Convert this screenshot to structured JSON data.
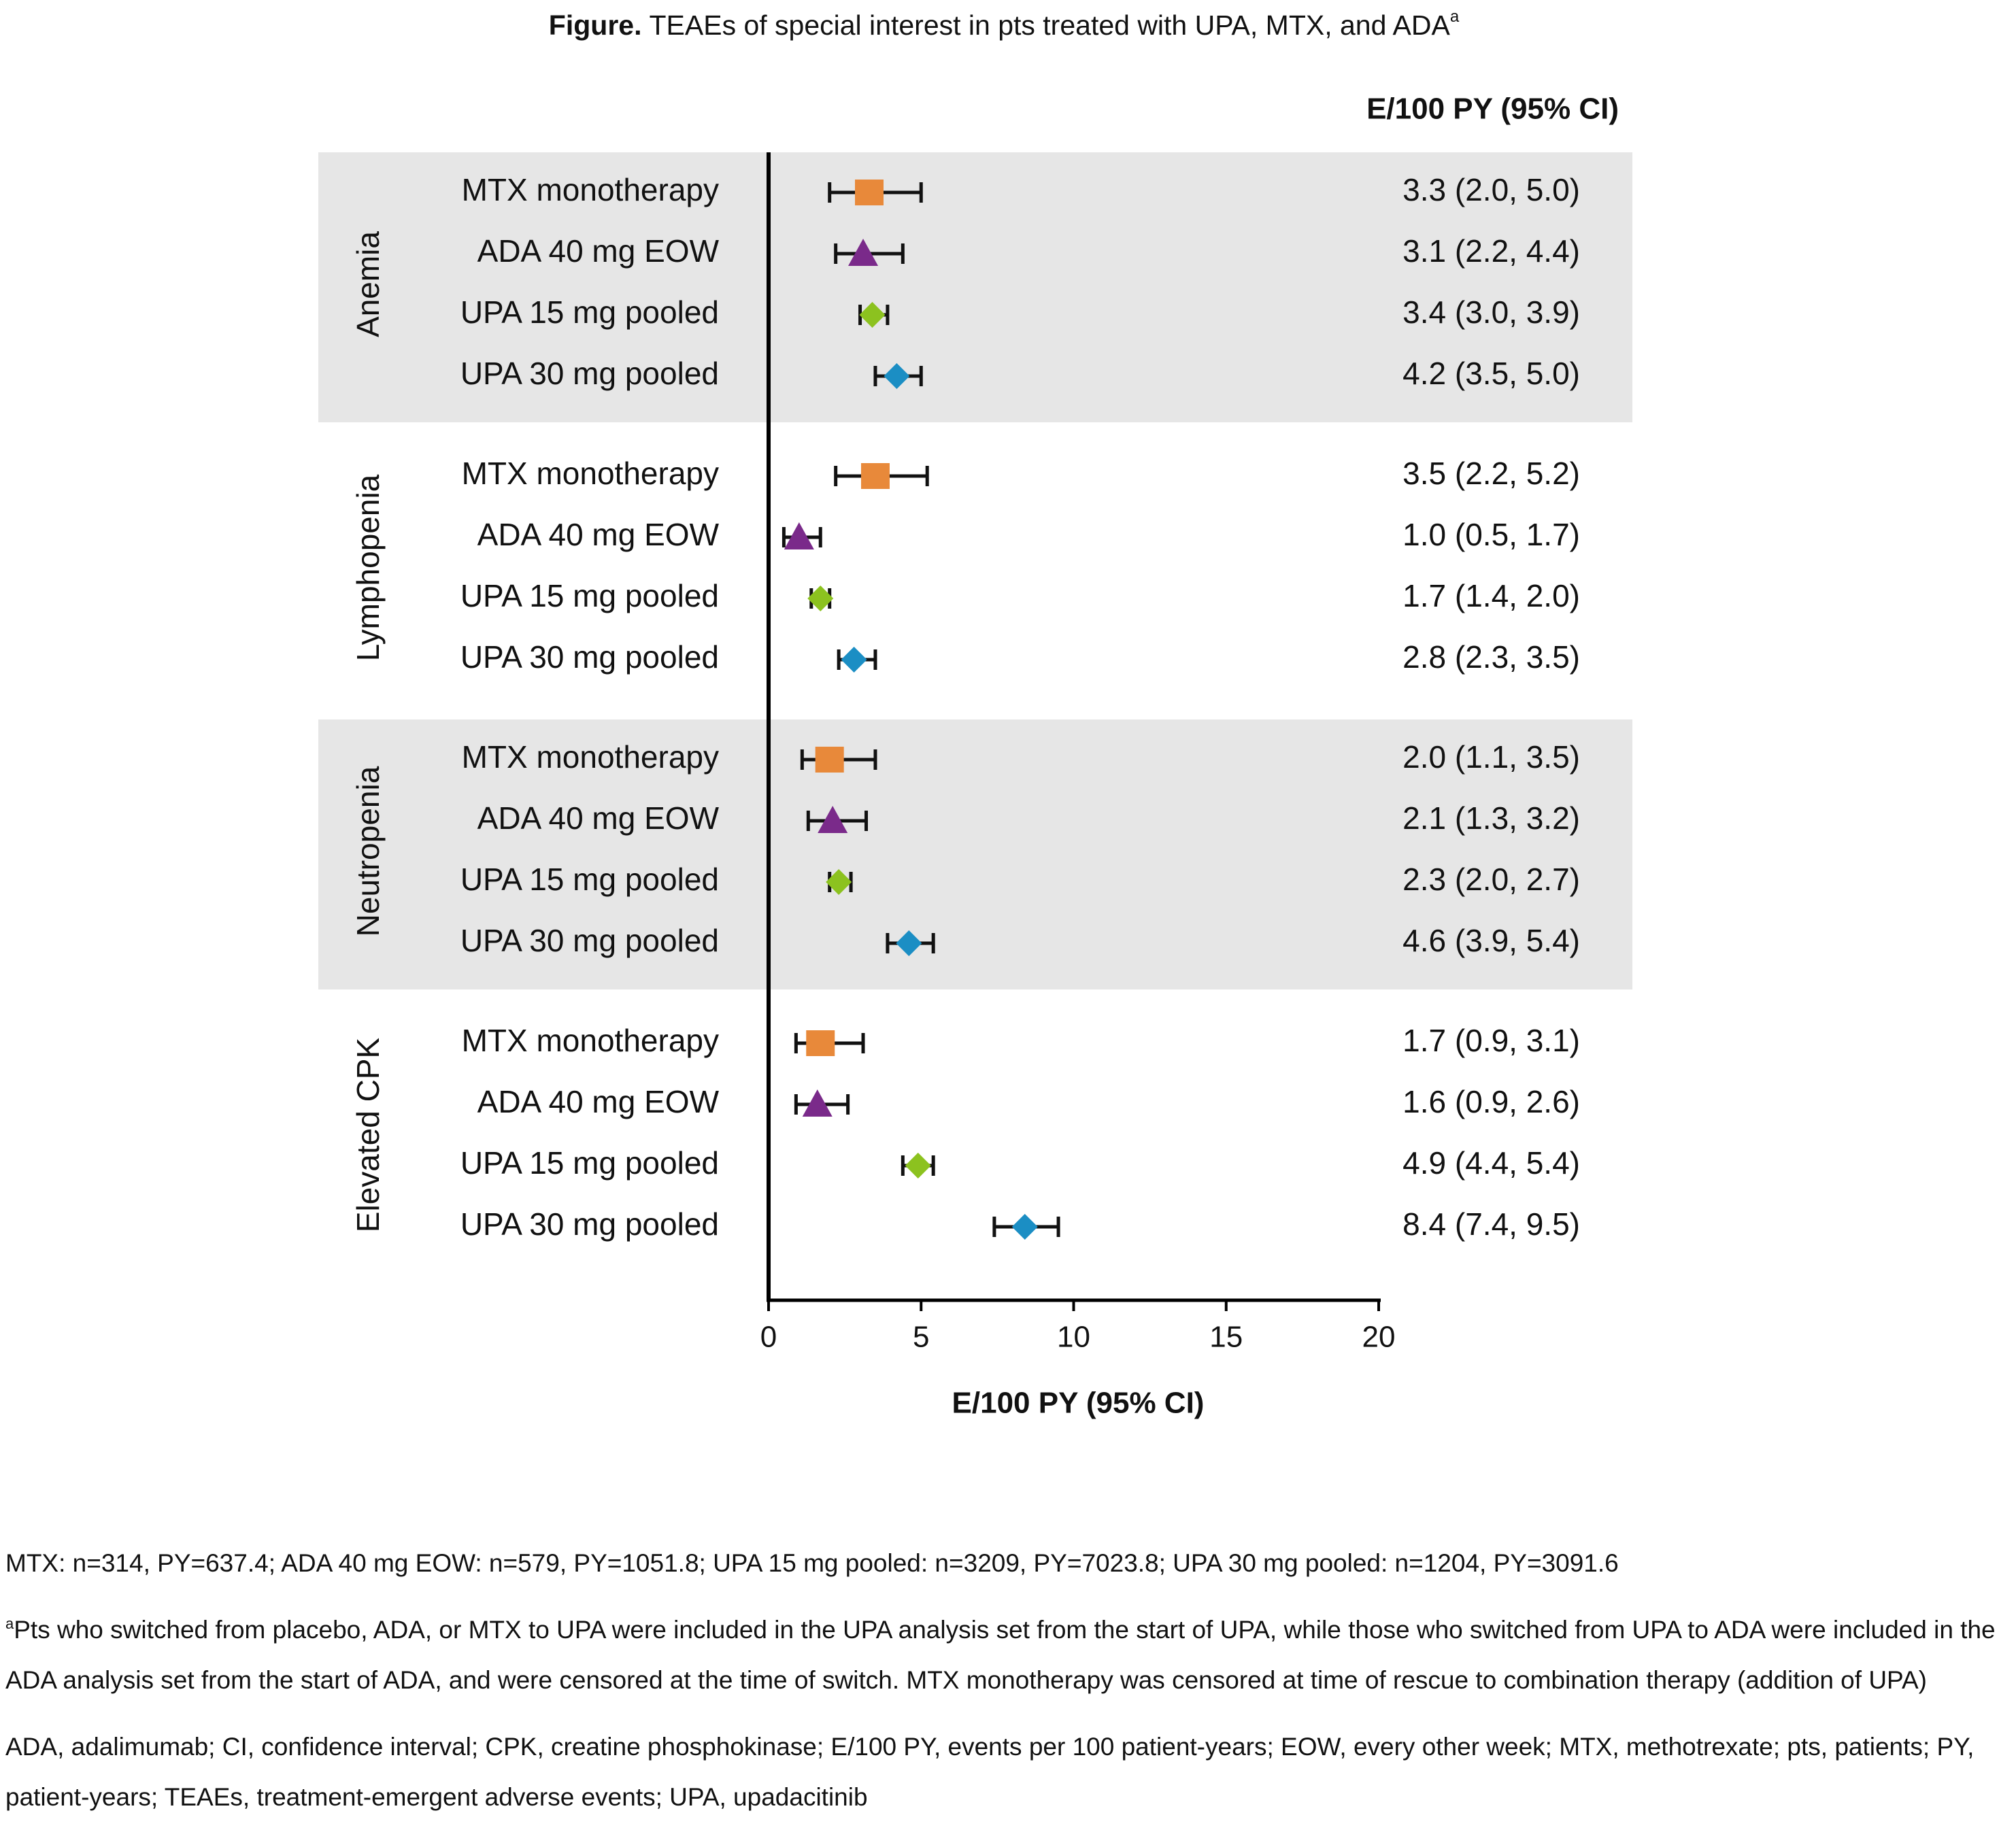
{
  "chart_data": {
    "type": "forest",
    "title_prefix": "Figure.",
    "title": "TEAEs of special interest in pts treated with UPA, MTX, and ADA",
    "title_sup": "a",
    "column_header": "E/100 PY (95% CI)",
    "xlabel": "E/100 PY (95% CI)",
    "xlim": [
      0,
      20
    ],
    "xticks": [
      0,
      5,
      10,
      15,
      20
    ],
    "categories": [
      "Anemia",
      "Lymphopenia",
      "Neutropenia",
      "Elevated CPK"
    ],
    "shaded": [
      true,
      false,
      true,
      false
    ],
    "shade_color": "#e6e6e6",
    "series": [
      {
        "name": "MTX monotherapy",
        "marker": "square",
        "color": "#e8893a",
        "values": [
          3.3,
          3.5,
          2.0,
          1.7
        ],
        "lower": [
          2.0,
          2.2,
          1.1,
          0.9
        ],
        "upper": [
          5.0,
          5.2,
          3.5,
          3.1
        ],
        "value_labels": [
          "3.3 (2.0, 5.0)",
          "3.5 (2.2, 5.2)",
          "2.0 (1.1, 3.5)",
          "1.7 (0.9, 3.1)"
        ]
      },
      {
        "name": "ADA 40 mg EOW",
        "marker": "triangle",
        "color": "#7a2a8a",
        "values": [
          3.1,
          1.0,
          2.1,
          1.6
        ],
        "lower": [
          2.2,
          0.5,
          1.3,
          0.9
        ],
        "upper": [
          4.4,
          1.7,
          3.2,
          2.6
        ],
        "value_labels": [
          "3.1 (2.2, 4.4)",
          "1.0 (0.5, 1.7)",
          "2.1 (1.3, 3.2)",
          "1.6 (0.9, 2.6)"
        ]
      },
      {
        "name": "UPA 15 mg pooled",
        "marker": "diamond",
        "color": "#8cc21f",
        "values": [
          3.4,
          1.7,
          2.3,
          4.9
        ],
        "lower": [
          3.0,
          1.4,
          2.0,
          4.4
        ],
        "upper": [
          3.9,
          2.0,
          2.7,
          5.4
        ],
        "value_labels": [
          "3.4 (3.0, 3.9)",
          "1.7 (1.4, 2.0)",
          "2.3 (2.0, 2.7)",
          "4.9 (4.4, 5.4)"
        ]
      },
      {
        "name": "UPA 30 mg pooled",
        "marker": "diamond",
        "color": "#1b8ec4",
        "values": [
          4.2,
          2.8,
          4.6,
          8.4
        ],
        "lower": [
          3.5,
          2.3,
          3.9,
          7.4
        ],
        "upper": [
          5.0,
          3.5,
          5.4,
          9.5
        ],
        "value_labels": [
          "4.2 (3.5, 5.0)",
          "2.8 (2.3, 3.5)",
          "4.6 (3.9, 5.4)",
          "8.4 (7.4, 9.5)"
        ]
      }
    ],
    "footnotes": [
      {
        "text": "MTX: n=314, PY=637.4; ADA 40 mg EOW: n=579, PY=1051.8; UPA 15 mg pooled: n=3209, PY=7023.8; UPA 30 mg pooled: n=1204, PY=3091.6"
      },
      {
        "sup": "a",
        "text": "Pts who switched from placebo, ADA, or MTX to UPA were included in the UPA analysis set from the start of UPA, while those who switched from UPA to ADA were included in the ADA analysis set from the start of ADA, and were censored at the time of switch. MTX monotherapy was censored at time of rescue to combination therapy (addition of UPA)"
      },
      {
        "text": "ADA, adalimumab; CI, confidence interval; CPK, creatine phosphokinase; E/100 PY, events per 100 patient-years; EOW, every other week; MTX, methotrexate; pts, patients; PY, patient-years; TEAEs, treatment-emergent adverse events; UPA, upadacitinib"
      }
    ]
  }
}
